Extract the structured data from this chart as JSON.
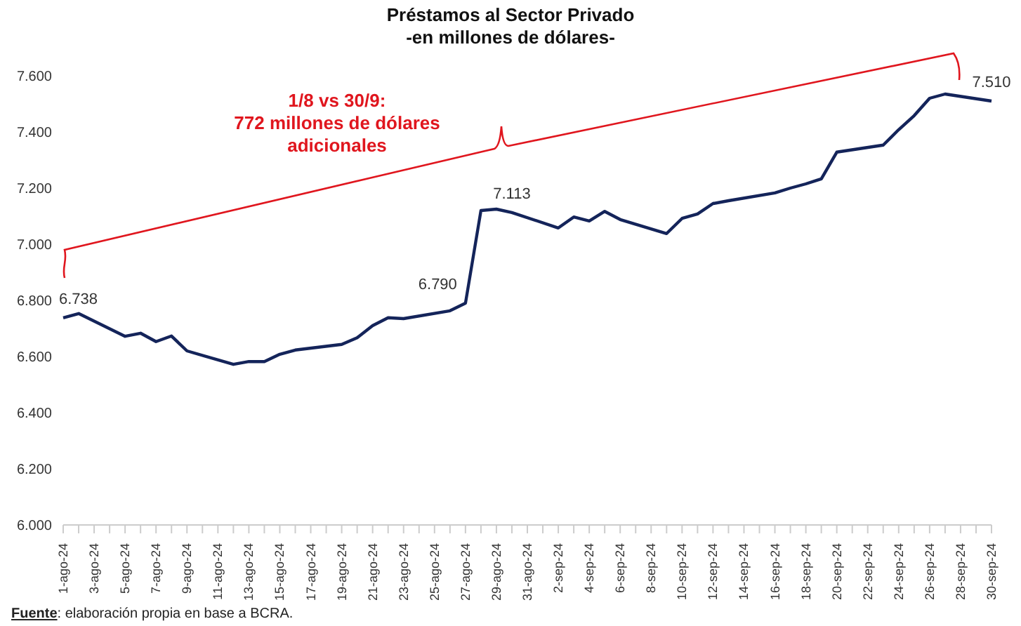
{
  "chart_data": {
    "type": "line",
    "title": "Préstamos al Sector Privado",
    "subtitle": "-en millones de dólares-",
    "categories": [
      "1-ago-24",
      null,
      "3-ago-24",
      null,
      "5-ago-24",
      null,
      "7-ago-24",
      null,
      "9-ago-24",
      null,
      "11-ago-24",
      null,
      "13-ago-24",
      null,
      "15-ago-24",
      null,
      "17-ago-24",
      null,
      "19-ago-24",
      null,
      "21-ago-24",
      null,
      "23-ago-24",
      null,
      "25-ago-24",
      null,
      "27-ago-24",
      null,
      "29-ago-24",
      null,
      "31-ago-24",
      null,
      "2-sep-24",
      null,
      "4-sep-24",
      null,
      "6-sep-24",
      null,
      "8-sep-24",
      null,
      "10-sep-24",
      null,
      "12-sep-24",
      null,
      "14-sep-24",
      null,
      "16-sep-24",
      null,
      "18-sep-24",
      null,
      "20-sep-24",
      null,
      "22-sep-24",
      null,
      "24-sep-24",
      null,
      "26-sep-24",
      null,
      "28-sep-24",
      null,
      "30-sep-24"
    ],
    "series": [
      {
        "color": "#14245a",
        "values": [
          6738,
          6753,
          null,
          null,
          6672,
          6683,
          6653,
          6673,
          6620,
          null,
          null,
          6572,
          6582,
          6582,
          6608,
          6623,
          null,
          null,
          6643,
          6667,
          6710,
          6738,
          6735,
          null,
          null,
          6763,
          6790,
          7120,
          7125,
          7113,
          null,
          null,
          7058,
          7097,
          7083,
          7117,
          7088,
          null,
          null,
          7038,
          7092,
          7108,
          7145,
          7155,
          null,
          null,
          7183,
          7200,
          7215,
          7233,
          7328,
          null,
          null,
          7353,
          7408,
          7458,
          7520,
          7535,
          null,
          null,
          7510
        ],
        "value_labels": [
          "6.738",
          null,
          null,
          null,
          null,
          null,
          null,
          null,
          null,
          null,
          null,
          null,
          null,
          null,
          null,
          null,
          null,
          null,
          null,
          null,
          null,
          null,
          null,
          null,
          null,
          null,
          "6.790",
          null,
          null,
          "7.113",
          null,
          null,
          null,
          null,
          null,
          null,
          null,
          null,
          null,
          null,
          null,
          null,
          null,
          null,
          null,
          null,
          null,
          null,
          null,
          null,
          null,
          null,
          null,
          null,
          null,
          null,
          null,
          null,
          null,
          null,
          "7.510"
        ]
      }
    ],
    "ylim": [
      6000,
      7600
    ],
    "yticks": [
      {
        "value": 6000,
        "label": "6.000"
      },
      {
        "value": 6200,
        "label": "6.200"
      },
      {
        "value": 6400,
        "label": "6.400"
      },
      {
        "value": 6600,
        "label": "6.600"
      },
      {
        "value": 6800,
        "label": "6.800"
      },
      {
        "value": 7000,
        "label": "7.000"
      },
      {
        "value": 7200,
        "label": "7.200"
      },
      {
        "value": 7400,
        "label": "7.400"
      },
      {
        "value": 7600,
        "label": "7.600"
      }
    ],
    "annotations": [
      "1/8 vs 30/9:\n772 millones de dólares\nadicionales",
      "Fuente: elaboración propia en base a BCRA."
    ]
  }
}
